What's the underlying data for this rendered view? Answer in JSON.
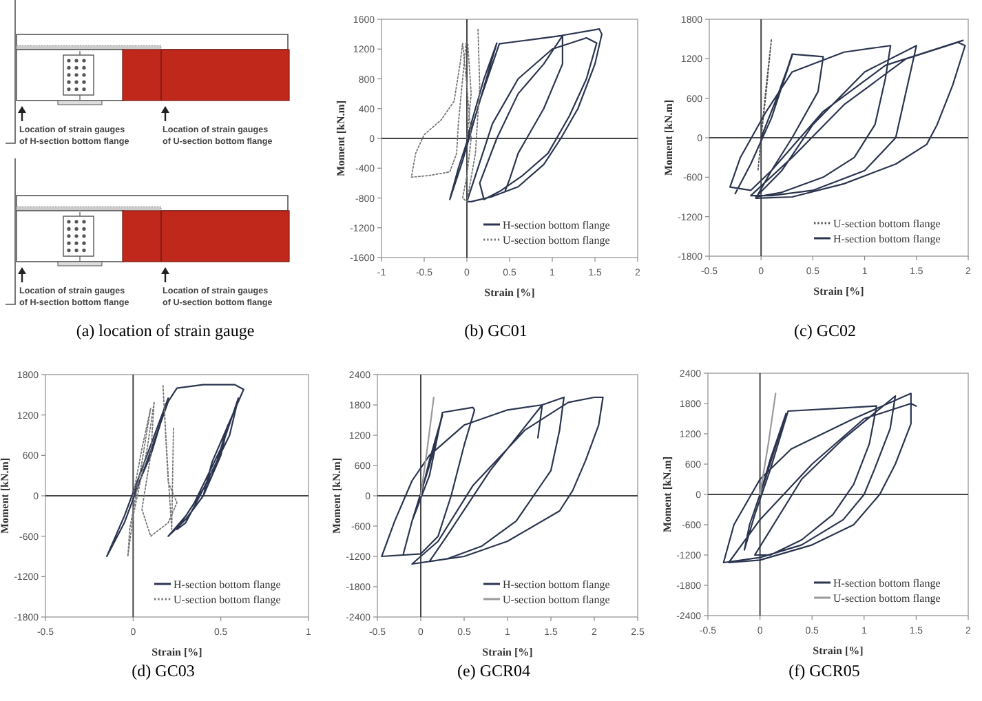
{
  "chart_data": [
    {
      "type": "other",
      "title": "(a)  location  of  strain  gauge",
      "annotations": [
        "Location of strain gauges of H-section bottom flange",
        "Location of strain gauges of U-section bottom flange",
        "Location of strain gauges of H-section bottom flange",
        "Location of strain gauges of U-section bottom flange"
      ]
    },
    {
      "type": "line",
      "title": "(b)  GC01",
      "xlabel": "Strain [%]",
      "ylabel": "Moment [kN.m]",
      "xlim": [
        -1,
        2
      ],
      "ylim": [
        -1600,
        1600
      ],
      "xticks": [
        -1,
        -0.5,
        0,
        0.5,
        1,
        1.5,
        2
      ],
      "yticks": [
        -1600,
        -1200,
        -800,
        -400,
        0,
        400,
        800,
        1200,
        1600
      ],
      "legend": "bottom right",
      "series": [
        {
          "name": "H-section bottom flange",
          "color": "#2b3550",
          "line_style": "solid",
          "x": [
            0,
            0.2,
            0.35,
            0.1,
            -0.1,
            -0.2,
            -0.05,
            0.15,
            0.38,
            1.1,
            1.55,
            1.58,
            1.5,
            1.3,
            1.1,
            0.9,
            0.6,
            0.3,
            0.05,
            0,
            0.1,
            0.3,
            0.6,
            1,
            1.4,
            1.52,
            1.4,
            1.2,
            0.95,
            0.65,
            0.4,
            0.2,
            0.15,
            0.35,
            0.6,
            0.9,
            1.12,
            1.12,
            0.9,
            0.6,
            0.5,
            0.45
          ],
          "values": [
            0,
            800,
            1280,
            300,
            -400,
            -820,
            -300,
            500,
            1270,
            1380,
            1470,
            1400,
            1000,
            400,
            0,
            -350,
            -650,
            -780,
            -850,
            -850,
            -500,
            200,
            800,
            1200,
            1350,
            1280,
            800,
            300,
            -200,
            -500,
            -700,
            -820,
            -600,
            0,
            600,
            1000,
            1380,
            1000,
            400,
            -200,
            -550,
            -700
          ]
        },
        {
          "name": "U-section bottom flange",
          "color": "#777777",
          "line_style": "dotted",
          "x": [
            0,
            0.05,
            0.01,
            -0.01,
            -0.05,
            -0.1,
            -0.12,
            -0.2,
            -0.45,
            -0.65,
            -0.6,
            -0.5,
            -0.3,
            -0.15,
            -0.08,
            -0.05,
            0,
            0.05,
            0,
            -0.05,
            0,
            0.1,
            0.15,
            0.13
          ],
          "values": [
            0,
            600,
            1280,
            1280,
            800,
            200,
            -200,
            -450,
            -500,
            -520,
            -200,
            50,
            250,
            500,
            1000,
            1280,
            700,
            0,
            -500,
            -800,
            -850,
            -200,
            700,
            1480
          ]
        }
      ]
    },
    {
      "type": "line",
      "title": "(c)  GC02",
      "xlabel": "Strain [%]",
      "ylabel": "Moment [kN.m]",
      "xlim": [
        -0.5,
        2
      ],
      "ylim": [
        -1800,
        1800
      ],
      "xticks": [
        -0.5,
        0,
        0.5,
        1,
        1.5,
        2
      ],
      "yticks": [
        -1800,
        -1200,
        -600,
        0,
        600,
        1200,
        1800
      ],
      "legend": "bottom right",
      "series": [
        {
          "name": "U-section bottom flange",
          "color": "#555555",
          "line_style": "dotted",
          "x": [
            0,
            0.05,
            0.1,
            0.05,
            0,
            -0.03
          ],
          "values": [
            0,
            700,
            1500,
            800,
            0,
            -500
          ]
        },
        {
          "name": "H-section bottom flange",
          "color": "#2b3550",
          "line_style": "solid",
          "x": [
            0,
            0.15,
            0.3,
            0.1,
            -0.1,
            -0.25,
            -0.1,
            0.1,
            0.3,
            0.6,
            0.55,
            0.3,
            0.1,
            -0.1,
            -0.3,
            -0.2,
            0.05,
            0.3,
            0.8,
            1.25,
            1.2,
            1.1,
            0.9,
            0.6,
            0.2,
            -0.05,
            0.2,
            0.5,
            1,
            1.5,
            1.4,
            1.3,
            1,
            0.5,
            0.1,
            -0.1,
            0.3,
            0.8,
            1.4,
            1.9,
            1.97,
            1.85,
            1.7,
            1.6,
            1.3,
            0.8,
            0.3,
            -0.05,
            0.1,
            0.6,
            1.2,
            1.95
          ],
          "values": [
            0,
            600,
            1250,
            300,
            -400,
            -850,
            -400,
            300,
            1270,
            1230,
            700,
            0,
            -500,
            -800,
            -750,
            -300,
            400,
            1000,
            1300,
            1400,
            900,
            200,
            -300,
            -600,
            -830,
            -900,
            -500,
            200,
            1000,
            1400,
            700,
            0,
            -500,
            -800,
            -880,
            -880,
            -300,
            500,
            1200,
            1450,
            1400,
            800,
            200,
            -100,
            -400,
            -700,
            -900,
            -920,
            -500,
            400,
            1100,
            1480
          ]
        }
      ]
    },
    {
      "type": "line",
      "title": "(d)  GC03",
      "xlabel": "Strain [%]",
      "ylabel": "Moment [kN.m]",
      "xlim": [
        -0.5,
        1
      ],
      "ylim": [
        -1800,
        1800
      ],
      "xticks": [
        -0.5,
        0,
        0.5,
        1
      ],
      "yticks": [
        -1800,
        -1200,
        -600,
        0,
        600,
        1200,
        1800
      ],
      "legend": "bottom right",
      "series": [
        {
          "name": "H-section bottom flange",
          "color": "#2b3550",
          "line_style": "solid",
          "x": [
            0,
            0.1,
            0.2,
            0.05,
            -0.05,
            -0.15,
            -0.05,
            0.05,
            0.2,
            0.25,
            0.4,
            0.58,
            0.63,
            0.55,
            0.45,
            0.4,
            0.3,
            0.2,
            0.3,
            0.45,
            0.6,
            0.55,
            0.4,
            0.3,
            0.25,
            0.35,
            0.5,
            0.54,
            0.5,
            0.4
          ],
          "values": [
            0,
            600,
            1450,
            400,
            -300,
            -900,
            -400,
            300,
            1400,
            1600,
            1650,
            1650,
            1580,
            1100,
            500,
            0,
            -350,
            -600,
            -300,
            300,
            1450,
            900,
            100,
            -400,
            -500,
            -100,
            700,
            1050,
            600,
            0
          ]
        },
        {
          "name": "U-section bottom flange",
          "color": "#777777",
          "line_style": "dotted",
          "x": [
            0,
            0.05,
            0.1,
            0.05,
            -0.02,
            -0.03,
            0,
            0.08,
            0.12,
            0.1,
            0.05,
            0.1,
            0.2,
            0.25,
            0.2,
            0.17,
            0.2,
            0.22,
            0.23
          ],
          "values": [
            0,
            700,
            1300,
            500,
            -500,
            -900,
            -300,
            700,
            1400,
            600,
            -200,
            -600,
            -400,
            -100,
            200,
            1650,
            300,
            -500,
            1000
          ]
        }
      ]
    },
    {
      "type": "line",
      "title": "(e)  GCR04",
      "xlabel": "Strain [%]",
      "ylabel": "Moment [kN.m]",
      "xlim": [
        -0.5,
        2.5
      ],
      "ylim": [
        -2400,
        2400
      ],
      "xticks": [
        -0.5,
        0,
        0.5,
        1,
        1.5,
        2,
        2.5
      ],
      "yticks": [
        -2400,
        -1800,
        -1200,
        -600,
        0,
        600,
        1200,
        1800,
        2400
      ],
      "legend": "bottom right",
      "series": [
        {
          "name": "H-section bottom flange",
          "color": "#2b3550",
          "line_style": "solid",
          "x": [
            0,
            0.1,
            0.25,
            0.1,
            -0.1,
            -0.2,
            -0.1,
            0.1,
            0.25,
            0.6,
            0.62,
            0.5,
            0.35,
            0.2,
            0,
            -0.45,
            -0.3,
            -0.1,
            0.1,
            0.5,
            1,
            1.4,
            1.65,
            1.6,
            1.5,
            1.3,
            1.1,
            0.7,
            0.3,
            -0.1,
            0.2,
            0.6,
            1.2,
            1.7,
            2,
            2.1,
            2.05,
            1.9,
            1.75,
            1.6,
            1,
            0.5,
            0.1,
            0.3,
            0.8,
            1.4,
            1.35
          ],
          "values": [
            0,
            700,
            1600,
            600,
            -500,
            -1150,
            -500,
            400,
            1650,
            1750,
            1700,
            1000,
            0,
            -800,
            -1150,
            -1200,
            -500,
            300,
            800,
            1400,
            1700,
            1800,
            1950,
            1300,
            500,
            0,
            -500,
            -1000,
            -1250,
            -1350,
            -900,
            200,
            1300,
            1850,
            1950,
            1950,
            1400,
            700,
            100,
            -300,
            -900,
            -1200,
            -1300,
            -800,
            500,
            1800,
            1150
          ]
        },
        {
          "name": "U-section bottom flange",
          "color": "#9a9a9a",
          "line_style": "solid",
          "x": [
            0,
            0.08,
            0.15
          ],
          "values": [
            0,
            1000,
            1950
          ]
        }
      ]
    },
    {
      "type": "line",
      "title": "(f)  GCR05",
      "xlabel": "Strain [%]",
      "ylabel": "Moment [kN.m]",
      "xlim": [
        -0.5,
        2
      ],
      "ylim": [
        -2400,
        2400
      ],
      "xticks": [
        -0.5,
        0,
        0.5,
        1,
        1.5,
        2
      ],
      "yticks": [
        -2400,
        -1800,
        -1200,
        -600,
        0,
        600,
        1200,
        1800,
        2400
      ],
      "legend": "bottom right",
      "series": [
        {
          "name": "H-section bottom flange",
          "color": "#2b3550",
          "line_style": "solid",
          "x": [
            0,
            0.1,
            0.25,
            0.05,
            -0.1,
            -0.15,
            -0.05,
            0.1,
            0.27,
            0.7,
            1.12,
            1.05,
            0.9,
            0.7,
            0.4,
            0.1,
            -0.05,
            0.1,
            0.4,
            0.8,
            1.3,
            1.25,
            1.1,
            1,
            0.8,
            0.4,
            0,
            -0.35,
            -0.25,
            0,
            0.3,
            0.9,
            1.45,
            1.45,
            1.3,
            1.15,
            0.9,
            0.5,
            0,
            -0.3,
            0,
            0.5,
            1,
            1.45,
            1.5
          ],
          "values": [
            0,
            700,
            1600,
            300,
            -600,
            -1100,
            -400,
            500,
            1650,
            1700,
            1750,
            1000,
            200,
            -400,
            -900,
            -1200,
            -1200,
            -700,
            300,
            1100,
            1950,
            1300,
            500,
            0,
            -500,
            -1000,
            -1250,
            -1350,
            -600,
            300,
            900,
            1500,
            2000,
            1400,
            600,
            0,
            -600,
            -1000,
            -1300,
            -1350,
            -500,
            600,
            1500,
            1800,
            1750
          ]
        },
        {
          "name": "U-section bottom flange",
          "color": "#9a9a9a",
          "line_style": "solid",
          "x": [
            0,
            0.08,
            0.15
          ],
          "values": [
            0,
            1000,
            2000
          ]
        }
      ]
    }
  ]
}
